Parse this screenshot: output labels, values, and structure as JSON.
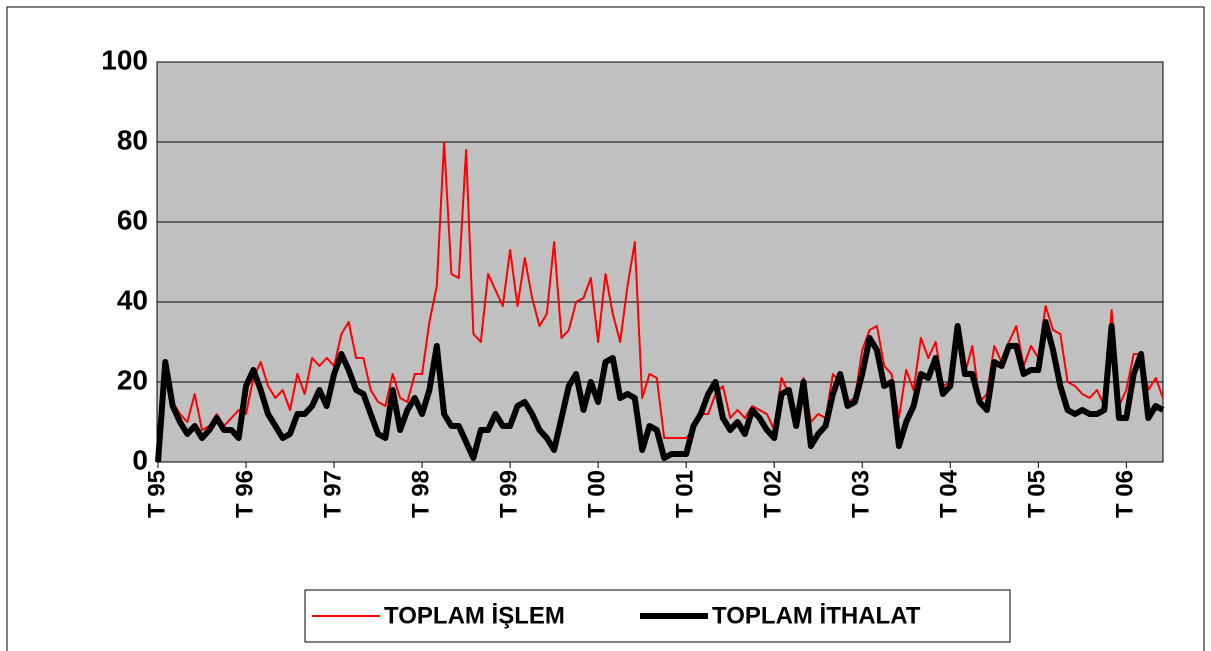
{
  "chart_data": {
    "type": "line",
    "categories": [
      "T 95",
      null,
      null,
      null,
      null,
      null,
      null,
      null,
      null,
      null,
      null,
      null,
      "T 96",
      null,
      null,
      null,
      null,
      null,
      null,
      null,
      null,
      null,
      null,
      null,
      "T 97",
      null,
      null,
      null,
      null,
      null,
      null,
      null,
      null,
      null,
      null,
      null,
      "T 98",
      null,
      null,
      null,
      null,
      null,
      null,
      null,
      null,
      null,
      null,
      null,
      "T 99",
      null,
      null,
      null,
      null,
      null,
      null,
      null,
      null,
      null,
      null,
      null,
      "T 00",
      null,
      null,
      null,
      null,
      null,
      null,
      null,
      null,
      null,
      null,
      null,
      "T 01",
      null,
      null,
      null,
      null,
      null,
      null,
      null,
      null,
      null,
      null,
      null,
      "T 02",
      null,
      null,
      null,
      null,
      null,
      null,
      null,
      null,
      null,
      null,
      null,
      "T 03",
      null,
      null,
      null,
      null,
      null,
      null,
      null,
      null,
      null,
      null,
      null,
      "T 04",
      null,
      null,
      null,
      null,
      null,
      null,
      null,
      null,
      null,
      null,
      null,
      "T 05",
      null,
      null,
      null,
      null,
      null,
      null,
      null,
      null,
      null,
      null,
      null,
      "T 06",
      null,
      null,
      null,
      null,
      null
    ],
    "series": [
      {
        "name": "TOPLAM İŞLEM",
        "color": "#ff0000",
        "width": 2,
        "values": [
          0,
          24,
          15,
          12,
          10,
          17,
          8,
          9,
          12,
          9,
          11,
          13,
          12,
          21,
          25,
          19,
          16,
          18,
          13,
          22,
          17,
          26,
          24,
          26,
          24,
          32,
          35,
          26,
          26,
          18,
          15,
          14,
          22,
          16,
          15,
          22,
          22,
          35,
          44,
          80,
          47,
          46,
          78,
          32,
          30,
          47,
          43,
          39,
          53,
          39,
          51,
          41,
          34,
          37,
          55,
          31,
          33,
          40,
          41,
          46,
          30,
          47,
          37,
          30,
          44,
          55,
          16,
          22,
          21,
          6,
          6,
          6,
          6,
          8,
          12,
          12,
          17,
          19,
          11,
          13,
          11,
          14,
          13,
          12,
          8,
          21,
          17,
          12,
          21,
          10,
          12,
          11,
          22,
          20,
          15,
          16,
          28,
          33,
          34,
          24,
          22,
          11,
          23,
          18,
          31,
          26,
          30,
          19,
          20,
          31,
          22,
          29,
          15,
          17,
          29,
          25,
          30,
          34,
          24,
          29,
          26,
          39,
          33,
          32,
          20,
          19,
          17,
          16,
          18,
          14,
          38,
          14,
          18,
          27,
          27,
          18,
          21,
          16
        ]
      },
      {
        "name": "TOPLAM İTHALAT",
        "color": "#000000",
        "width": 6,
        "values": [
          0,
          25,
          14,
          10,
          7,
          9,
          6,
          8,
          11,
          8,
          8,
          6,
          19,
          23,
          18,
          12,
          9,
          6,
          7,
          12,
          12,
          14,
          18,
          14,
          22,
          27,
          23,
          18,
          17,
          12,
          7,
          6,
          18,
          8,
          13,
          16,
          12,
          18,
          29,
          12,
          9,
          9,
          5,
          1,
          8,
          8,
          12,
          9,
          9,
          14,
          15,
          12,
          8,
          6,
          3,
          11,
          19,
          22,
          13,
          20,
          15,
          25,
          26,
          16,
          17,
          16,
          3,
          9,
          8,
          1,
          2,
          2,
          2,
          9,
          12,
          17,
          20,
          11,
          8,
          10,
          7,
          13,
          11,
          8,
          6,
          17,
          18,
          9,
          20,
          4,
          7,
          9,
          17,
          22,
          14,
          15,
          22,
          31,
          28,
          19,
          20,
          4,
          10,
          14,
          22,
          21,
          26,
          17,
          19,
          34,
          22,
          22,
          15,
          13,
          25,
          24,
          29,
          29,
          22,
          23,
          23,
          35,
          28,
          19,
          13,
          12,
          13,
          12,
          12,
          13,
          34,
          11,
          11,
          22,
          27,
          11,
          14,
          13
        ]
      }
    ],
    "ylim": [
      0,
      100
    ],
    "yticks": [
      0,
      20,
      40,
      60,
      80,
      100
    ],
    "grid": true,
    "legend": "bottom"
  }
}
